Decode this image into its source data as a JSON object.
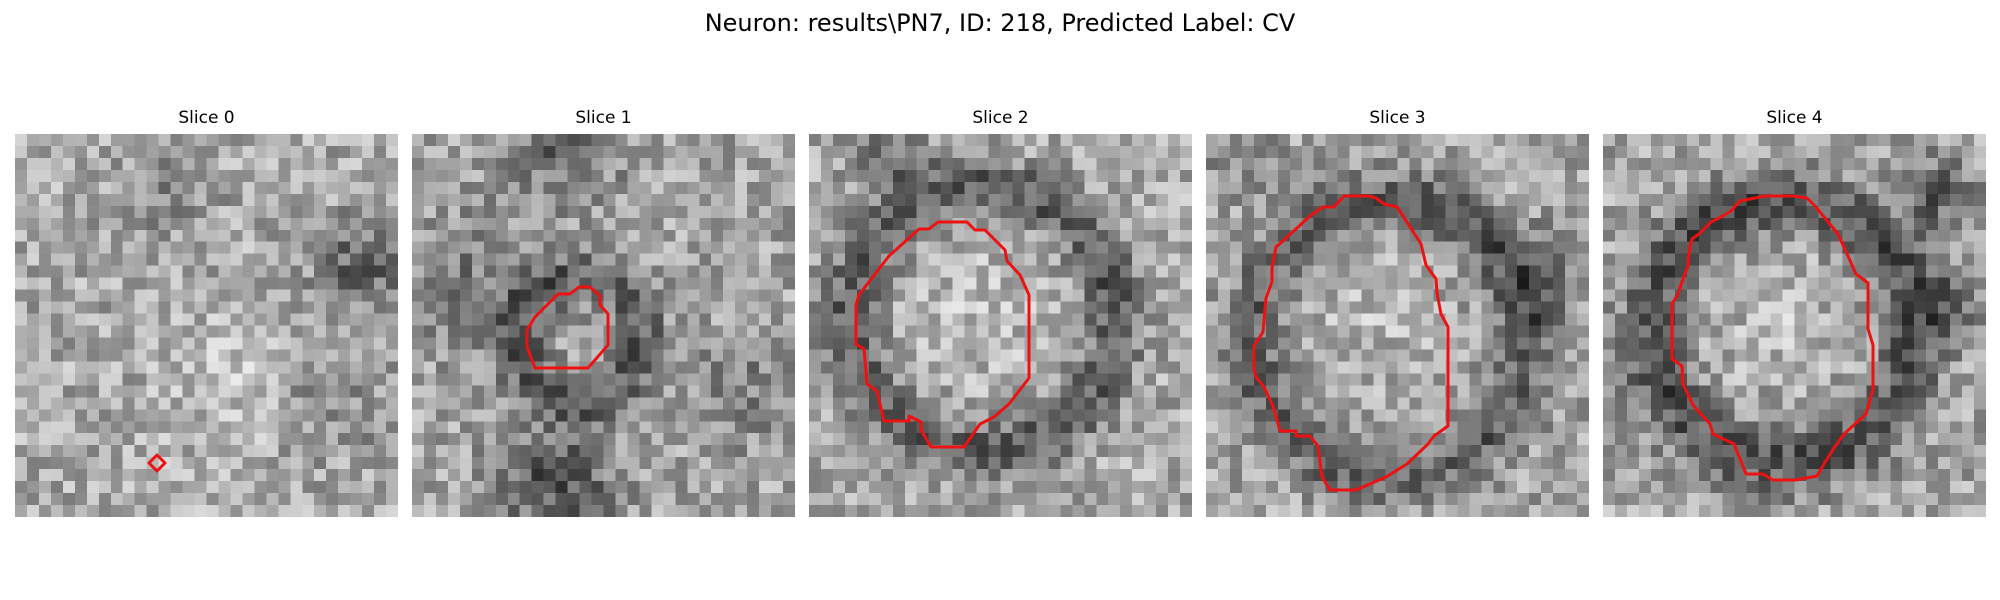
{
  "figure": {
    "title": "Neuron: results\\PN7, ID: 218, Predicted Label: CV"
  },
  "panels": [
    {
      "title": "Slice 0"
    },
    {
      "title": "Slice 1"
    },
    {
      "title": "Slice 2"
    },
    {
      "title": "Slice 3"
    },
    {
      "title": "Slice 4"
    }
  ],
  "colors": {
    "contour": "#ee1111",
    "background": "#ffffff"
  },
  "image": {
    "description_colormap": "gray",
    "grid_size": 32
  }
}
